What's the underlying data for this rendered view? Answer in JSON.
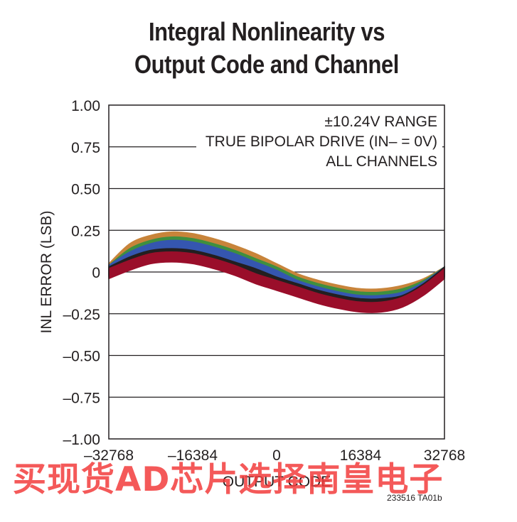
{
  "chart_data": {
    "type": "line",
    "title_lines": [
      "Integral Nonlinearity vs",
      "Output Code and Channel"
    ],
    "xlabel": "OUTPUT CODE",
    "ylabel": "INL ERROR (LSB)",
    "xlim": [
      -32768,
      32768
    ],
    "ylim": [
      -1.0,
      1.0
    ],
    "x_ticks": [
      -32768,
      -16384,
      0,
      16384,
      32768
    ],
    "x_tick_labels": [
      "–32768",
      "–16384",
      "0",
      "16384",
      "32768"
    ],
    "y_ticks": [
      1.0,
      0.75,
      0.5,
      0.25,
      0,
      -0.25,
      -0.5,
      -0.75,
      -1.0
    ],
    "y_tick_labels": [
      "1.00",
      "0.75",
      "0.50",
      "0.25",
      "0",
      "–0.25",
      "–0.50",
      "–0.75",
      "–1.00"
    ],
    "grid": "horizontal",
    "annotations": [
      "±10.24V RANGE",
      "TRUE BIPOLAR DRIVE (IN– = 0V)",
      "ALL CHANNELS"
    ],
    "x": [
      -32768,
      -28672,
      -24576,
      -20480,
      -16384,
      -12288,
      -8192,
      -4096,
      0,
      4096,
      8192,
      12288,
      16384,
      20480,
      24576,
      28672,
      32768
    ],
    "series": [
      {
        "color": "#c8843a",
        "values": [
          0.02,
          0.14,
          0.19,
          0.21,
          0.2,
          0.17,
          0.13,
          0.08,
          0.02,
          -0.04,
          -0.08,
          -0.11,
          -0.13,
          -0.13,
          -0.11,
          -0.07,
          0.0
        ]
      },
      {
        "color": "#3f8f3f",
        "values": [
          0.01,
          0.11,
          0.16,
          0.18,
          0.17,
          0.14,
          0.1,
          0.05,
          0.0,
          -0.06,
          -0.1,
          -0.13,
          -0.15,
          -0.15,
          -0.13,
          -0.08,
          0.0
        ]
      },
      {
        "color": "#3556b0",
        "values": [
          0.01,
          0.09,
          0.14,
          0.16,
          0.15,
          0.12,
          0.08,
          0.03,
          -0.02,
          -0.08,
          -0.12,
          -0.15,
          -0.17,
          -0.17,
          -0.15,
          -0.09,
          0.0
        ]
      },
      {
        "color": "#231f20",
        "values": [
          0.0,
          0.06,
          0.1,
          0.11,
          0.1,
          0.07,
          0.03,
          -0.01,
          -0.06,
          -0.1,
          -0.14,
          -0.17,
          -0.19,
          -0.19,
          -0.17,
          -0.1,
          0.0
        ]
      },
      {
        "color": "#9a0e2a",
        "values": [
          -0.01,
          0.04,
          0.08,
          0.09,
          0.08,
          0.05,
          0.01,
          -0.04,
          -0.08,
          -0.12,
          -0.16,
          -0.19,
          -0.21,
          -0.21,
          -0.18,
          -0.11,
          -0.01
        ]
      }
    ],
    "band_halfwidth": 0.03
  },
  "footnote": "233516 TA01b",
  "watermark": "买现货AD芯片选择南皇电子"
}
